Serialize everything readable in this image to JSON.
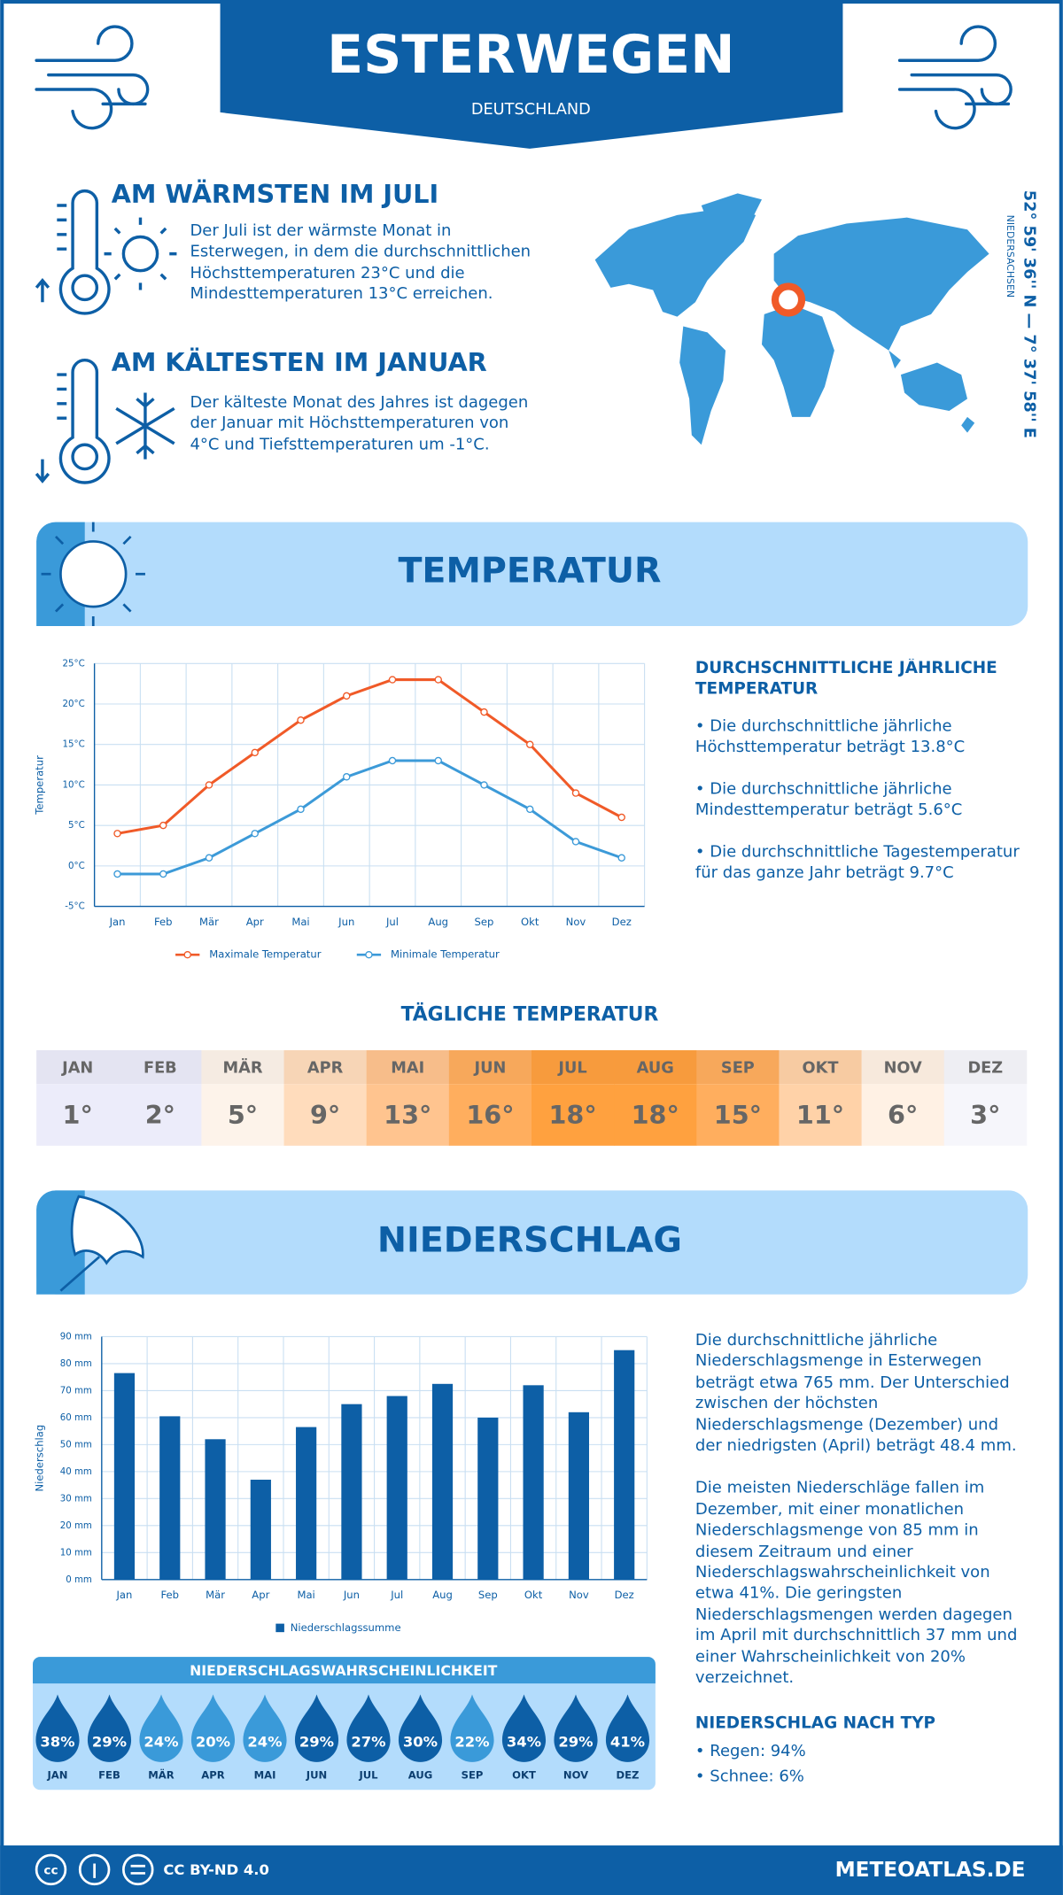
{
  "header": {
    "title": "ESTERWEGEN",
    "subtitle": "DEUTSCHLAND"
  },
  "warmest": {
    "title": "AM WÄRMSTEN IM JULI",
    "text": "Der Juli ist der wärmste Monat in Esterwegen, in dem die durchschnittlichen Höchsttemperaturen 23°C und die Mindesttemperaturen 13°C erreichen."
  },
  "coldest": {
    "title": "AM KÄLTESTEN IM JANUAR",
    "text": "Der kälteste Monat des Jahres ist dagegen der Januar mit Höchsttemperaturen von 4°C und Tiefsttemperaturen um -1°C."
  },
  "location": {
    "coordinates": "52° 59' 36'' N — 7° 37' 58'' E",
    "region": "NIEDERSACHSEN"
  },
  "temperature_section": {
    "title": "TEMPERATUR",
    "summary_title": "DURCHSCHNITTLICHE JÄHRLICHE TEMPERATUR",
    "bullets": [
      "• Die durchschnittliche jährliche Höchsttemperatur beträgt 13.8°C",
      "• Die durchschnittliche jährliche Mindesttemperatur beträgt 5.6°C",
      "• Die durchschnittliche Tagestemperatur für das ganze Jahr beträgt 9.7°C"
    ]
  },
  "chart_data": [
    {
      "type": "line",
      "y_label": "Temperatur",
      "categories": [
        "Jan",
        "Feb",
        "Mär",
        "Apr",
        "Mai",
        "Jun",
        "Jul",
        "Aug",
        "Sep",
        "Okt",
        "Nov",
        "Dez"
      ],
      "series": [
        {
          "name": "Maximale Temperatur",
          "color": "#f05a28",
          "values": [
            4,
            5,
            10,
            14,
            18,
            21,
            23,
            23,
            19,
            15,
            9,
            6
          ]
        },
        {
          "name": "Minimale Temperatur",
          "color": "#3c9ad8",
          "values": [
            -1,
            -1,
            1,
            4,
            7,
            11,
            13,
            13,
            10,
            7,
            3,
            1
          ]
        }
      ],
      "ylim": [
        -5,
        25
      ],
      "yticks": [
        {
          "value": -5,
          "label": "-5°C"
        },
        {
          "value": 0,
          "label": "0°C"
        },
        {
          "value": 5,
          "label": "5°C"
        },
        {
          "value": 10,
          "label": "10°C"
        },
        {
          "value": 15,
          "label": "15°C"
        },
        {
          "value": 20,
          "label": "20°C"
        },
        {
          "value": 25,
          "label": "25°C"
        }
      ],
      "grid": true
    },
    {
      "type": "bar",
      "y_label": "Niederschlag",
      "categories": [
        "Jan",
        "Feb",
        "Mär",
        "Apr",
        "Mai",
        "Jun",
        "Jul",
        "Aug",
        "Sep",
        "Okt",
        "Nov",
        "Dez"
      ],
      "series": [
        {
          "name": "Niederschlagssumme",
          "color": "#0d5fa6",
          "values": [
            76.5,
            60.5,
            52,
            37,
            56.5,
            65,
            68,
            72.5,
            60,
            72,
            62,
            85
          ]
        }
      ],
      "ylim": [
        0,
        90
      ],
      "yticks": [
        {
          "value": 0,
          "label": "0 mm"
        },
        {
          "value": 10,
          "label": "10 mm"
        },
        {
          "value": 20,
          "label": "20 mm"
        },
        {
          "value": 30,
          "label": "30 mm"
        },
        {
          "value": 40,
          "label": "40 mm"
        },
        {
          "value": 50,
          "label": "50 mm"
        },
        {
          "value": 60,
          "label": "60 mm"
        },
        {
          "value": 70,
          "label": "70 mm"
        },
        {
          "value": 80,
          "label": "80 mm"
        },
        {
          "value": 90,
          "label": "90 mm"
        }
      ],
      "grid": true
    }
  ],
  "daily_temperature": {
    "title": "TÄGLICHE TEMPERATUR",
    "months": [
      "JAN",
      "FEB",
      "MÄR",
      "APR",
      "MAI",
      "JUN",
      "JUL",
      "AUG",
      "SEP",
      "OKT",
      "NOV",
      "DEZ"
    ],
    "values": [
      "1°",
      "2°",
      "5°",
      "9°",
      "13°",
      "16°",
      "18°",
      "18°",
      "15°",
      "11°",
      "6°",
      "3°"
    ],
    "colors": [
      "#ececfa",
      "#ececfa",
      "#fdf3ea",
      "#ffdcbc",
      "#ffc48f",
      "#ffae5e",
      "#ffa13f",
      "#ffa13f",
      "#ffae5e",
      "#ffd2a8",
      "#fff1e4",
      "#f6f6fb"
    ]
  },
  "precipitation_section": {
    "title": "NIEDERSCHLAG",
    "paragraphs": [
      "Die durchschnittliche jährliche Niederschlagsmenge in Esterwegen beträgt etwa 765 mm. Der Unterschied zwischen der höchsten Niederschlagsmenge (Dezember) und der niedrigsten (April) beträgt 48.4 mm.",
      "Die meisten Niederschläge fallen im Dezember, mit einer monatlichen Niederschlagsmenge von 85 mm in diesem Zeitraum und einer Niederschlagswahrscheinlichkeit von etwa 41%. Die geringsten Niederschlagsmengen werden dagegen im April mit durchschnittlich 37 mm und einer Wahrscheinlichkeit von 20% verzeichnet."
    ],
    "type_title": "NIEDERSCHLAG NACH TYP",
    "types": [
      "• Regen: 94%",
      "• Schnee: 6%"
    ]
  },
  "probability": {
    "title": "NIEDERSCHLAGSWAHRSCHEINLICHKEIT",
    "months": [
      "JAN",
      "FEB",
      "MÄR",
      "APR",
      "MAI",
      "JUN",
      "JUL",
      "AUG",
      "SEP",
      "OKT",
      "NOV",
      "DEZ"
    ],
    "values": [
      "38%",
      "29%",
      "24%",
      "20%",
      "24%",
      "29%",
      "27%",
      "30%",
      "22%",
      "34%",
      "29%",
      "41%"
    ],
    "colors": [
      "#0d5fa6",
      "#0d5fa6",
      "#3a9ad9",
      "#3a9ad9",
      "#3a9ad9",
      "#0d5fa6",
      "#0d5fa6",
      "#0d5fa6",
      "#3a9ad9",
      "#0d5fa6",
      "#0d5fa6",
      "#0d5fa6"
    ]
  },
  "footer": {
    "license": "CC BY-ND 4.0",
    "site": "METEOATLAS.DE"
  }
}
